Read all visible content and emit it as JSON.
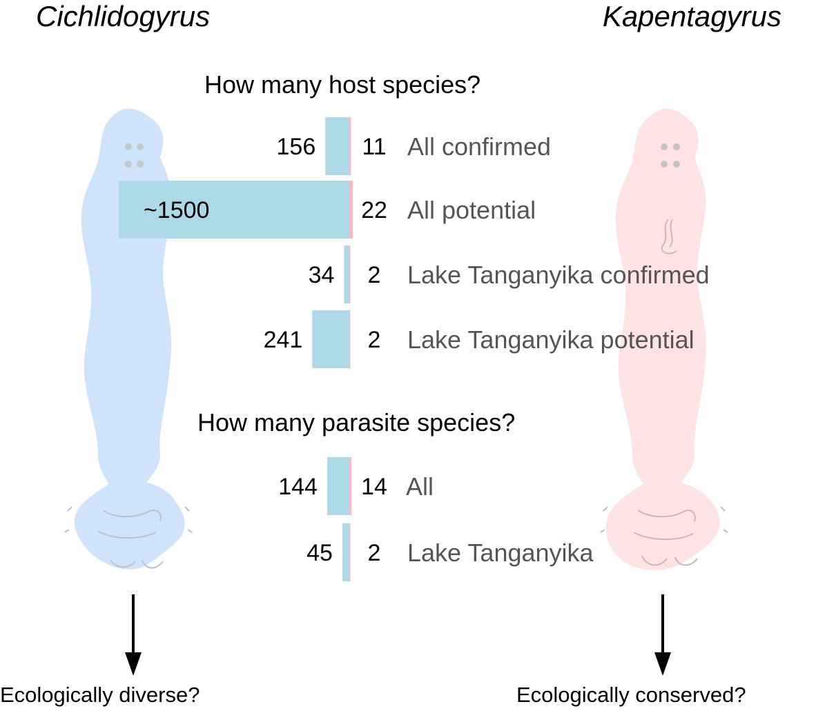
{
  "left_genus": "Cichlidogyrus",
  "right_genus": "Kapentagyrus",
  "host_question": "How many host species?",
  "parasite_question": "How many parasite species?",
  "left_conclusion": "Ecologically diverse?",
  "right_conclusion": "Ecologically conserved?",
  "colors": {
    "cichlidogyrus_bar": "#add8e6",
    "kapentagyrus_bar": "#ffb6c1",
    "cichlidogyrus_body": "#cfe4fb",
    "kapentagyrus_body": "#fde3e3",
    "category_text": "#555555"
  },
  "chart_data": {
    "type": "bar",
    "orientation": "horizontal-butterfly",
    "groups": [
      {
        "question": "How many host species?",
        "rows": [
          {
            "label": "All confirmed",
            "cichlidogyrus": 156,
            "cichlidogyrus_label": "156",
            "kapentagyrus": 11,
            "kapentagyrus_label": "11"
          },
          {
            "label": "All potential",
            "cichlidogyrus": 1500,
            "cichlidogyrus_label": "~1500",
            "kapentagyrus": 22,
            "kapentagyrus_label": "22"
          },
          {
            "label": "Lake Tanganyika confirmed",
            "cichlidogyrus": 34,
            "cichlidogyrus_label": "34",
            "kapentagyrus": 2,
            "kapentagyrus_label": "2"
          },
          {
            "label": "Lake Tanganyika potential",
            "cichlidogyrus": 241,
            "cichlidogyrus_label": "241",
            "kapentagyrus": 2,
            "kapentagyrus_label": "2"
          }
        ]
      },
      {
        "question": "How many parasite species?",
        "rows": [
          {
            "label": "All",
            "cichlidogyrus": 144,
            "cichlidogyrus_label": "144",
            "kapentagyrus": 14,
            "kapentagyrus_label": "14"
          },
          {
            "label": "Lake Tanganyika",
            "cichlidogyrus": 45,
            "cichlidogyrus_label": "45",
            "kapentagyrus": 2,
            "kapentagyrus_label": "2"
          }
        ]
      }
    ]
  }
}
